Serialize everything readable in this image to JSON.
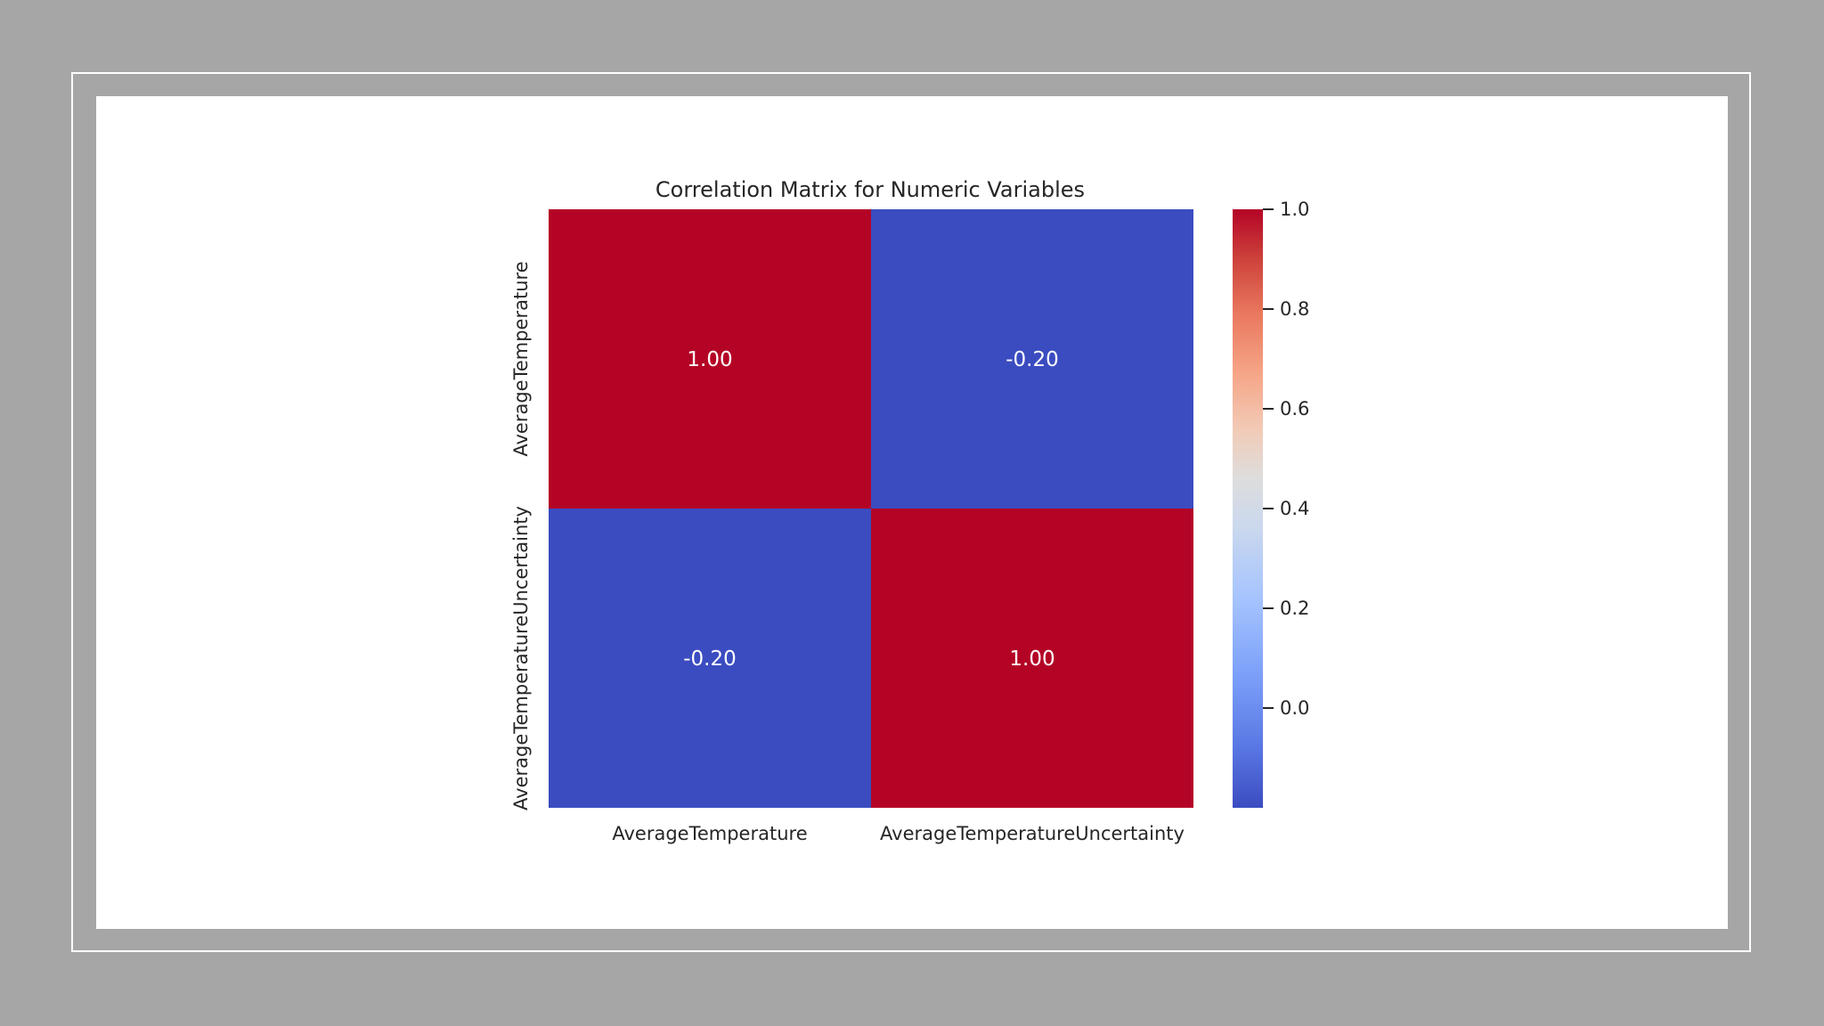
{
  "chart_data": {
    "type": "heatmap",
    "title": "Correlation Matrix for Numeric Variables",
    "x_labels": [
      "AverageTemperature",
      "AverageTemperatureUncertainty"
    ],
    "y_labels": [
      "AverageTemperature",
      "AverageTemperatureUncertainty"
    ],
    "values": [
      [
        1.0,
        -0.2
      ],
      [
        -0.2,
        1.0
      ]
    ],
    "annotations": [
      [
        "1.00",
        "-0.20"
      ],
      [
        "-0.20",
        "1.00"
      ]
    ],
    "colormap": "coolwarm",
    "vmin": -0.2,
    "vmax": 1.0,
    "colorbar_ticks": [
      {
        "value": 1.0,
        "label": "1.0"
      },
      {
        "value": 0.8,
        "label": "0.8"
      },
      {
        "value": 0.6,
        "label": "0.6"
      },
      {
        "value": 0.4,
        "label": "0.4"
      },
      {
        "value": 0.2,
        "label": "0.2"
      },
      {
        "value": 0.0,
        "label": "0.0"
      }
    ],
    "cell_text_color": "#ffffff",
    "colors": {
      "high": "#b40426",
      "low": "#3b4cc0",
      "mid": "#dddddd"
    }
  }
}
